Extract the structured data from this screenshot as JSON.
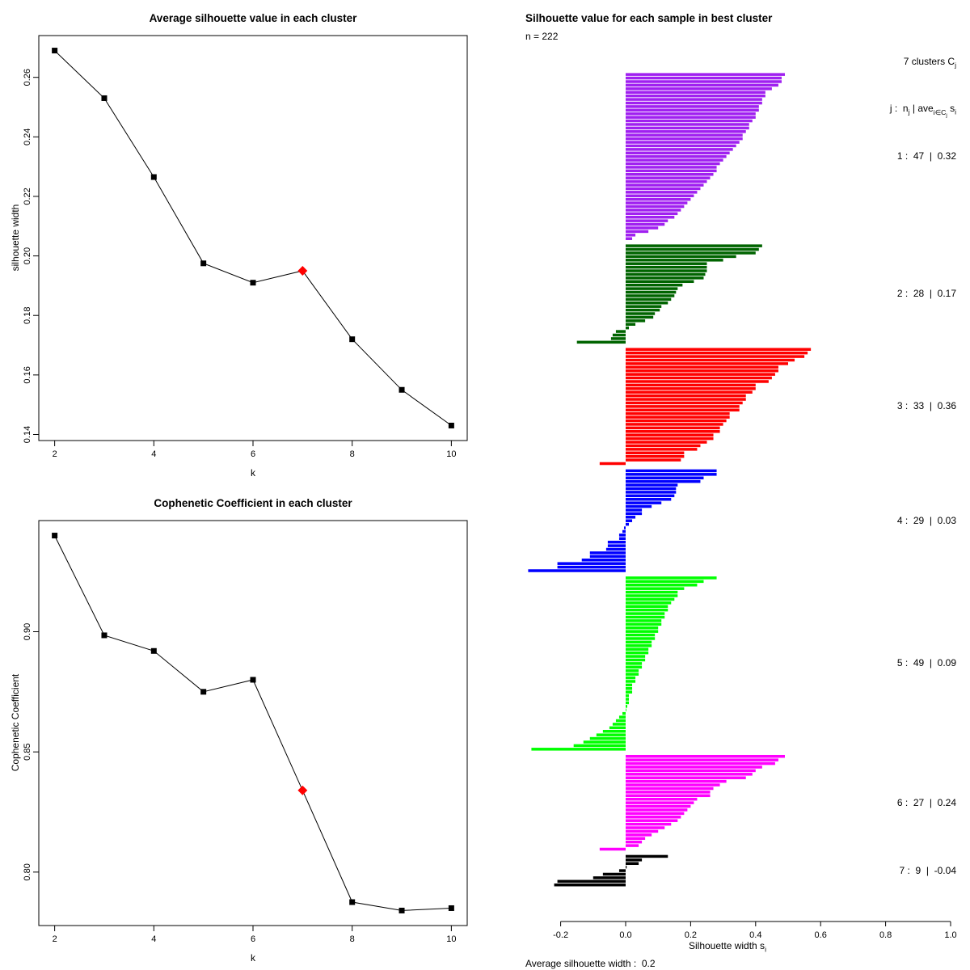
{
  "figure": {
    "background": "#ffffff"
  },
  "chart_data": [
    {
      "id": "avg_chart",
      "type": "line",
      "title": "Average silhouette value in each cluster",
      "xlabel": "k",
      "ylabel": "silhouette width",
      "x": [
        2,
        3,
        4,
        5,
        6,
        7,
        8,
        9,
        10
      ],
      "y": [
        0.269,
        0.253,
        0.2265,
        0.1975,
        0.191,
        0.195,
        0.172,
        0.155,
        0.143
      ],
      "highlight": {
        "x": 7,
        "y": 0.195,
        "color": "#ff0000",
        "marker": "diamond"
      },
      "marker": "square",
      "line_color": "#000000",
      "marker_color": "#000000",
      "xticks": {
        "values": [
          2,
          4,
          6,
          8,
          10
        ],
        "labels": [
          "2",
          "4",
          "6",
          "8",
          "10"
        ]
      },
      "yticks": {
        "values": [
          0.14,
          0.16,
          0.18,
          0.2,
          0.22,
          0.24,
          0.26
        ],
        "labels": [
          "0.14",
          "0.16",
          "0.18",
          "0.20",
          "0.22",
          "0.24",
          "0.26"
        ]
      },
      "grid": false
    },
    {
      "id": "cophenetic_chart",
      "type": "line",
      "title": "Cophenetic Coefficient in each cluster",
      "xlabel": "k",
      "ylabel": "Cophenetic Coefficient",
      "x": [
        2,
        3,
        4,
        5,
        6,
        7,
        8,
        9,
        10
      ],
      "y": [
        0.94,
        0.8985,
        0.892,
        0.875,
        0.88,
        0.834,
        0.7875,
        0.784,
        0.785
      ],
      "highlight": {
        "x": 7,
        "y": 0.834,
        "color": "#ff0000",
        "marker": "diamond"
      },
      "marker": "square",
      "line_color": "#000000",
      "marker_color": "#000000",
      "xticks": {
        "values": [
          2,
          4,
          6,
          8,
          10
        ],
        "labels": [
          "2",
          "4",
          "6",
          "8",
          "10"
        ]
      },
      "yticks": {
        "values": [
          0.8,
          0.85,
          0.9
        ],
        "labels": [
          "0.80",
          "0.85",
          "0.90"
        ]
      },
      "grid": false
    },
    {
      "id": "silhouette_chart",
      "type": "bar",
      "orientation": "horizontal",
      "title": "Silhouette value for each sample in best cluster",
      "n_label": "n = 222",
      "legend": {
        "line1_text": "7 clusters C",
        "line1_sub": "j",
        "p1": "j :  n",
        "s1": "j",
        "p2": " | ave",
        "s2": "i∈C",
        "s2b": "j",
        "p3": " s",
        "s3": "i"
      },
      "xlabel_text": "Silhouette width s",
      "xlabel_sub": "i",
      "footer": "Average silhouette width :  0.2",
      "average_silhouette_width": 0.2,
      "n_total": 222,
      "xticks": {
        "values": [
          -0.2,
          0.0,
          0.2,
          0.4,
          0.6,
          0.8,
          1.0
        ],
        "labels": [
          "-0.2",
          "0.0",
          "0.2",
          "0.4",
          "0.6",
          "0.8",
          "1.0"
        ]
      },
      "xlim": [
        -0.32,
        1.0
      ],
      "clusters": [
        {
          "j": 1,
          "n": 47,
          "ave": "0.32",
          "color": "#a020f0",
          "values": [
            0.49,
            0.48,
            0.48,
            0.47,
            0.45,
            0.43,
            0.43,
            0.42,
            0.42,
            0.41,
            0.41,
            0.4,
            0.4,
            0.39,
            0.38,
            0.38,
            0.37,
            0.36,
            0.36,
            0.35,
            0.34,
            0.33,
            0.32,
            0.31,
            0.3,
            0.29,
            0.28,
            0.28,
            0.27,
            0.26,
            0.25,
            0.24,
            0.23,
            0.22,
            0.21,
            0.2,
            0.19,
            0.18,
            0.17,
            0.16,
            0.15,
            0.13,
            0.12,
            0.1,
            0.07,
            0.03,
            0.02
          ]
        },
        {
          "j": 2,
          "n": 28,
          "ave": "0.17",
          "color": "#006400",
          "values": [
            0.42,
            0.41,
            0.4,
            0.34,
            0.3,
            0.25,
            0.25,
            0.25,
            0.245,
            0.24,
            0.21,
            0.175,
            0.16,
            0.155,
            0.15,
            0.14,
            0.13,
            0.11,
            0.105,
            0.09,
            0.085,
            0.06,
            0.03,
            0.01,
            -0.03,
            -0.04,
            -0.045,
            -0.15
          ]
        },
        {
          "j": 3,
          "n": 33,
          "ave": "0.36",
          "color": "#ff0000",
          "values": [
            0.57,
            0.56,
            0.55,
            0.52,
            0.5,
            0.47,
            0.47,
            0.46,
            0.45,
            0.44,
            0.4,
            0.4,
            0.39,
            0.37,
            0.37,
            0.36,
            0.35,
            0.35,
            0.32,
            0.32,
            0.31,
            0.3,
            0.29,
            0.29,
            0.27,
            0.27,
            0.25,
            0.23,
            0.22,
            0.18,
            0.18,
            0.17,
            -0.08
          ]
        },
        {
          "j": 4,
          "n": 29,
          "ave": "0.03",
          "color": "#0000ff",
          "values": [
            0.28,
            0.28,
            0.24,
            0.23,
            0.16,
            0.155,
            0.155,
            0.15,
            0.14,
            0.11,
            0.08,
            0.05,
            0.05,
            0.03,
            0.02,
            0.01,
            -0.005,
            -0.01,
            -0.02,
            -0.02,
            -0.055,
            -0.055,
            -0.06,
            -0.11,
            -0.11,
            -0.135,
            -0.21,
            -0.21,
            -0.3
          ]
        },
        {
          "j": 5,
          "n": 49,
          "ave": "0.09",
          "color": "#00ff00",
          "values": [
            0.28,
            0.24,
            0.22,
            0.18,
            0.16,
            0.16,
            0.15,
            0.14,
            0.13,
            0.13,
            0.12,
            0.12,
            0.11,
            0.11,
            0.1,
            0.1,
            0.09,
            0.09,
            0.08,
            0.08,
            0.07,
            0.07,
            0.06,
            0.06,
            0.05,
            0.05,
            0.04,
            0.04,
            0.03,
            0.03,
            0.02,
            0.02,
            0.02,
            0.01,
            0.01,
            0.01,
            0.005,
            0.0,
            -0.01,
            -0.02,
            -0.03,
            -0.04,
            -0.05,
            -0.07,
            -0.09,
            -0.11,
            -0.13,
            -0.16,
            -0.29
          ]
        },
        {
          "j": 6,
          "n": 27,
          "ave": "0.24",
          "color": "#ff00ff",
          "values": [
            0.49,
            0.47,
            0.46,
            0.42,
            0.4,
            0.39,
            0.37,
            0.31,
            0.29,
            0.27,
            0.26,
            0.26,
            0.22,
            0.21,
            0.2,
            0.19,
            0.18,
            0.17,
            0.16,
            0.14,
            0.12,
            0.1,
            0.08,
            0.06,
            0.05,
            0.04,
            -0.08
          ]
        },
        {
          "j": 7,
          "n": 9,
          "ave": "-0.04",
          "color": "#000000",
          "values": [
            0.13,
            0.05,
            0.04,
            0.003,
            -0.02,
            -0.07,
            -0.1,
            -0.21,
            -0.22
          ]
        }
      ]
    }
  ]
}
